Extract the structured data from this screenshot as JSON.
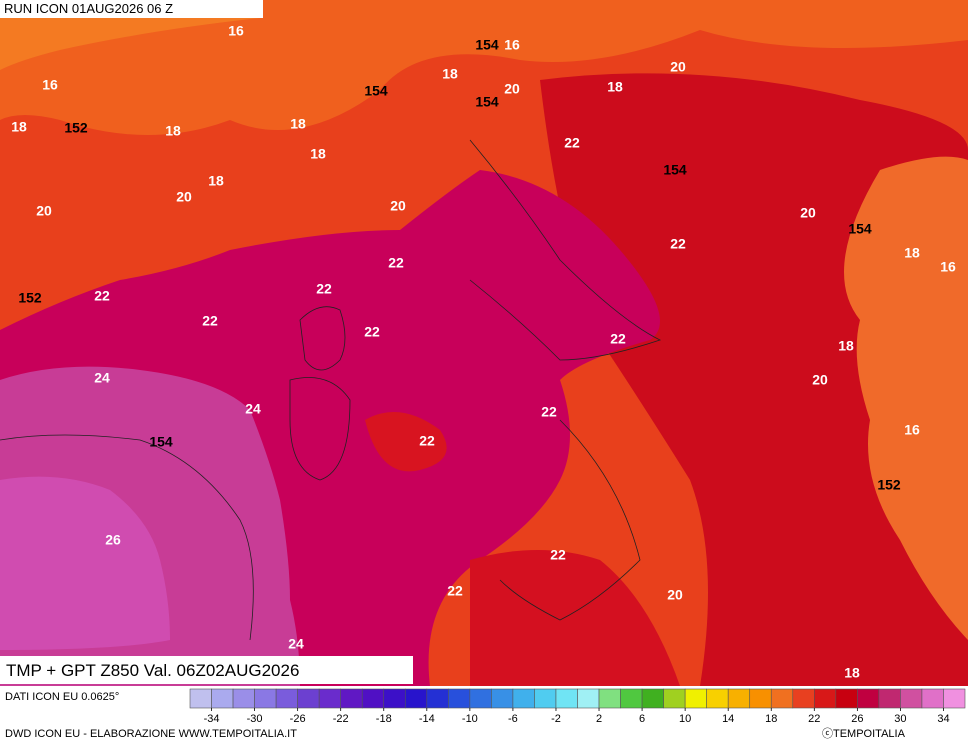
{
  "header": {
    "run": "RUN ICON 01AUG2026 06 Z"
  },
  "map": {
    "title": "TMP + GPT Z850 Val. 06Z02AUG2026",
    "temperature_labels": [
      16,
      16,
      20,
      16,
      18,
      20,
      18,
      18,
      18,
      18,
      22,
      18,
      18,
      20,
      20,
      20,
      20,
      22,
      18,
      16,
      22,
      22,
      22,
      22,
      22,
      22,
      18,
      20,
      24,
      24,
      22,
      22,
      16,
      26,
      22,
      22,
      20,
      24,
      18
    ],
    "geopotential_labels": [
      154,
      154,
      154,
      152,
      154,
      154,
      152,
      154,
      152
    ]
  },
  "colorbar": {
    "colors": [
      "#c0c0ee",
      "#aaaaee",
      "#9a8ee8",
      "#8a78e4",
      "#7a5cdc",
      "#6c40d0",
      "#6a2ccc",
      "#6018c4",
      "#5010c4",
      "#3c10c8",
      "#2814cc",
      "#2430d4",
      "#2850dc",
      "#3070e0",
      "#3890e6",
      "#40b0ec",
      "#50ccf0",
      "#70e4f4",
      "#a0f0f4",
      "#80e080",
      "#50c840",
      "#40b020",
      "#a0d020",
      "#f0f000",
      "#f8d000",
      "#f8b000",
      "#f89000",
      "#f07020",
      "#e84020",
      "#d81818",
      "#c80010",
      "#c00040",
      "#c02870",
      "#d050a0",
      "#e070c8",
      "#f090e0"
    ],
    "lim": [
      -36,
      36
    ],
    "ticks": [
      -34,
      -30,
      -26,
      -22,
      -18,
      -14,
      -10,
      -6,
      -2,
      2,
      6,
      10,
      14,
      18,
      22,
      26,
      30,
      34
    ]
  },
  "footer": {
    "source": "DATI ICON EU 0.0625°",
    "credit": "DWD ICON EU - ELABORAZIONE WWW.TEMPOITALIA.IT",
    "copyright": "ⓒTEMPOITALIA"
  }
}
